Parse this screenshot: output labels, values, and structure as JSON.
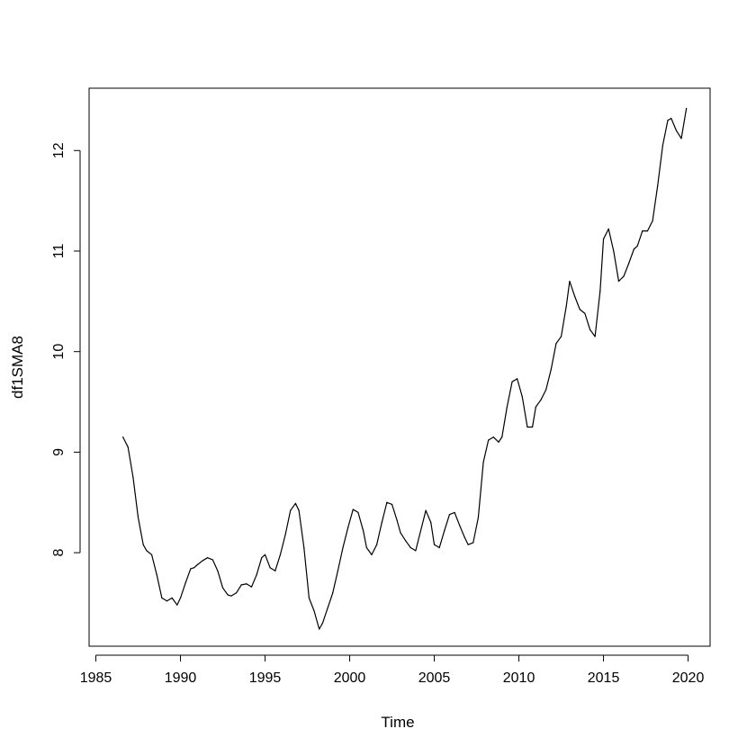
{
  "chart_data": {
    "type": "line",
    "title": "",
    "xlabel": "Time",
    "ylabel": "df1SMA8",
    "xlim": [
      1984.6,
      2021.3
    ],
    "ylim": [
      7.07,
      12.62
    ],
    "x_ticks": [
      1985,
      1990,
      1995,
      2000,
      2005,
      2010,
      2015,
      2020
    ],
    "y_ticks": [
      8,
      9,
      10,
      11,
      12
    ],
    "x_tick_labels": [
      "1985",
      "1990",
      "1995",
      "2000",
      "2005",
      "2010",
      "2015",
      "2020"
    ],
    "y_tick_labels": [
      "8",
      "9",
      "10",
      "11",
      "12"
    ],
    "grid": false,
    "legend": "none",
    "line_color": "#000000",
    "series": [
      {
        "x": [
          1986.6,
          1986.9,
          1987.2,
          1987.5,
          1987.8,
          1988.0,
          1988.3,
          1988.6,
          1988.9,
          1989.2,
          1989.5,
          1989.8,
          1990.0,
          1990.3,
          1990.6,
          1990.8,
          1991.0,
          1991.3,
          1991.6,
          1991.9,
          1992.2,
          1992.5,
          1992.8,
          1993.0,
          1993.3,
          1993.6,
          1993.9,
          1994.2,
          1994.5,
          1994.8,
          1995.0,
          1995.3,
          1995.6,
          1995.9,
          1996.2,
          1996.5,
          1996.8,
          1997.0,
          1997.3,
          1997.6,
          1997.9,
          1998.2,
          1998.4,
          1998.7,
          1999.0,
          1999.3,
          1999.6,
          1999.9,
          2000.2,
          2000.5,
          2000.8,
          2001.0,
          2001.3,
          2001.6,
          2001.9,
          2002.2,
          2002.5,
          2002.8,
          2003.0,
          2003.3,
          2003.6,
          2003.9,
          2004.2,
          2004.5,
          2004.8,
          2005.0,
          2005.3,
          2005.6,
          2005.9,
          2006.2,
          2006.5,
          2006.8,
          2007.0,
          2007.3,
          2007.6,
          2007.9,
          2008.2,
          2008.5,
          2008.8,
          2009.0,
          2009.3,
          2009.6,
          2009.9,
          2010.2,
          2010.5,
          2010.8,
          2011.0,
          2011.3,
          2011.6,
          2011.9,
          2012.2,
          2012.5,
          2012.8,
          2013.0,
          2013.3,
          2013.6,
          2013.9,
          2014.2,
          2014.5,
          2014.8,
          2015.0,
          2015.3,
          2015.6,
          2015.9,
          2016.2,
          2016.5,
          2016.8,
          2017.0,
          2017.3,
          2017.6,
          2017.9,
          2018.2,
          2018.5,
          2018.8,
          2019.0,
          2019.3,
          2019.6,
          2019.9
        ],
        "values": [
          9.15,
          9.05,
          8.75,
          8.35,
          8.08,
          8.02,
          7.98,
          7.78,
          7.55,
          7.52,
          7.55,
          7.48,
          7.55,
          7.7,
          7.84,
          7.85,
          7.88,
          7.92,
          7.95,
          7.93,
          7.82,
          7.65,
          7.58,
          7.57,
          7.6,
          7.68,
          7.69,
          7.66,
          7.78,
          7.95,
          7.98,
          7.85,
          7.82,
          7.98,
          8.18,
          8.42,
          8.49,
          8.42,
          8.05,
          7.55,
          7.42,
          7.24,
          7.3,
          7.45,
          7.6,
          7.82,
          8.05,
          8.25,
          8.43,
          8.4,
          8.22,
          8.05,
          7.98,
          8.08,
          8.3,
          8.5,
          8.48,
          8.32,
          8.2,
          8.12,
          8.05,
          8.02,
          8.22,
          8.42,
          8.3,
          8.08,
          8.05,
          8.22,
          8.38,
          8.4,
          8.27,
          8.15,
          8.08,
          8.1,
          8.35,
          8.9,
          9.12,
          9.15,
          9.1,
          9.15,
          9.45,
          9.7,
          9.73,
          9.55,
          9.25,
          9.25,
          9.45,
          9.52,
          9.62,
          9.82,
          10.08,
          10.15,
          10.45,
          10.7,
          10.55,
          10.42,
          10.38,
          10.22,
          10.15,
          10.6,
          11.12,
          11.22,
          11.0,
          10.7,
          10.75,
          10.88,
          11.02,
          11.05,
          11.2,
          11.2,
          11.3,
          11.65,
          12.05,
          12.3,
          12.32,
          12.2,
          12.12,
          12.42
        ]
      }
    ]
  }
}
